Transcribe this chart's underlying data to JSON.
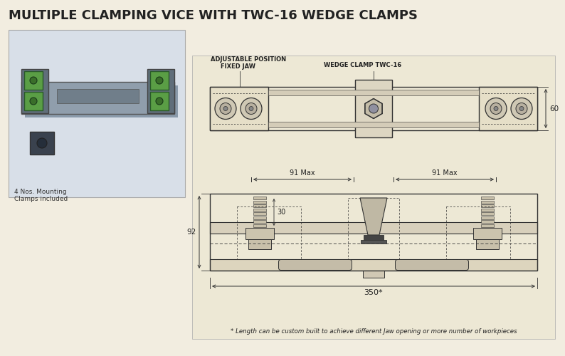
{
  "title": "MULTIPLE CLAMPING VICE WITH TWC-16 WEDGE CLAMPS",
  "title_fontsize": 13,
  "bg_color": "#f2ede0",
  "drawing_bg": "#ede8d5",
  "line_color": "#333333",
  "text_color": "#222222",
  "footnote": "* Length can be custom built to achieve different Jaw opening or more number of workpieces",
  "label_adj_pos": "ADJUSTABLE POSITION\n      FIXED JAW",
  "label_wedge": "WEDGE CLAMP TWC-16",
  "dim_60": "60",
  "dim_91_max_left": "91 Max",
  "dim_91_max_right": "91 Max",
  "dim_30": "30",
  "dim_92": "92",
  "dim_350": "350*",
  "photo_caption": "4 Nos. Mounting\nClamps included",
  "photo_bg": "#dde4ec",
  "jaw_color": "#e6dfc8",
  "bar_color": "#d8d0bc"
}
